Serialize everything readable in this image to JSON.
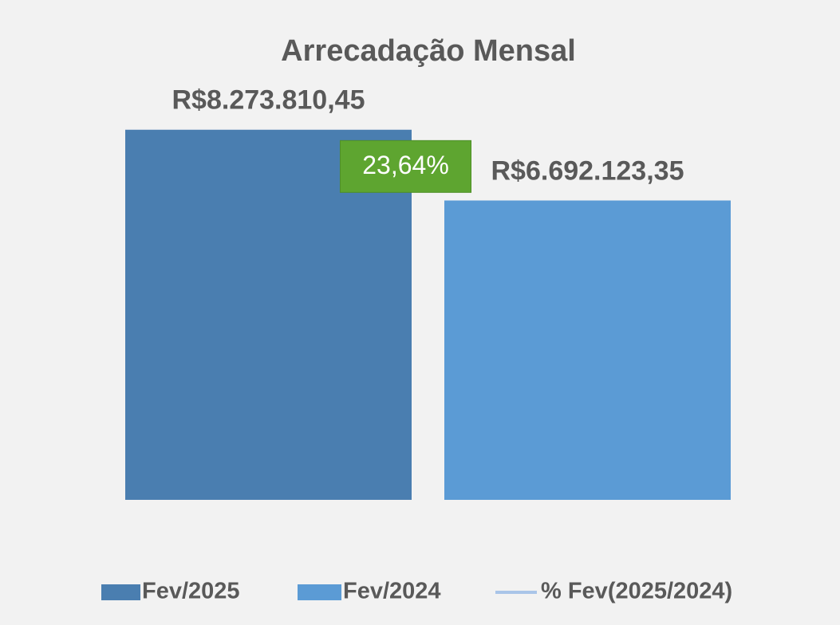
{
  "chart_data": {
    "type": "bar",
    "title": "Arrecadação Mensal",
    "categories": [
      null
    ],
    "series": [
      {
        "name": "Fev/2025",
        "color": "#4a7eb0",
        "values": [
          8273810.45
        ],
        "value_labels": [
          "R$8.273.810,45"
        ]
      },
      {
        "name": "Fev/2024",
        "color": "#5b9bd5",
        "values": [
          6692123.35
        ],
        "value_labels": [
          "R$6.692.123,35"
        ]
      },
      {
        "name": "% Fev(2025/2024)",
        "color": "#a9c5e8",
        "type": "line",
        "axis": "y2",
        "values": [
          23.64
        ],
        "value_labels": [
          "23,64%"
        ]
      }
    ],
    "ylim": [
      0,
      9000000
    ],
    "y2lim": [
      0,
      29
    ],
    "legend": "bottom"
  }
}
